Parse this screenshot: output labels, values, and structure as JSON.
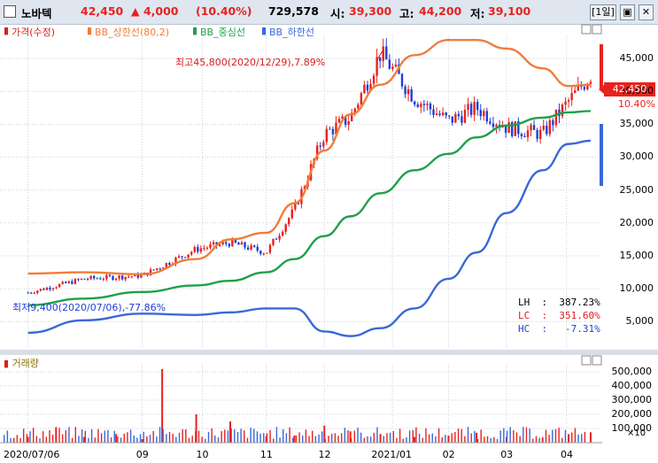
{
  "header": {
    "name": "노바텍",
    "price": "42,450",
    "change": "▲ 4,000",
    "change_pct": "(10.40%)",
    "volume": "729,578",
    "open_label": "시:",
    "open": "39,300",
    "high_label": "고:",
    "high": "44,200",
    "low_label": "저:",
    "low": "39,100",
    "period": "[1일]",
    "colors": {
      "up": "#e8221f",
      "down": "#1f3fd6"
    }
  },
  "legend": {
    "price": "가격(수정)",
    "bb_upper": "BB_상한선(80,2)",
    "bb_mid": "BB_중심선",
    "bb_lower": "BB_하한선",
    "colors": {
      "price": "#d81e1e",
      "bb_upper": "#f07d3a",
      "bb_mid": "#1fa04a",
      "bb_lower": "#3a68d8"
    }
  },
  "annotations": {
    "high_marker": "최고45,800(2020/12/29),7.89%",
    "low_marker": "최저9,400(2020/07/06),-77.86%",
    "lh": "LH  :  387.23%",
    "lc": "LC  :  351.60%",
    "hc": "HC  :   -7.31%",
    "current_price": "42,450",
    "current_pct": "10.40%"
  },
  "volume_panel": {
    "label": "거래량",
    "multiplier": "×10"
  },
  "chart_data": [
    {
      "type": "line",
      "title": "",
      "x_ticks": [
        "2020/07/06",
        "09",
        "10",
        "11",
        "12",
        "2021/01",
        "02",
        "03",
        "04"
      ],
      "y_ticks": [
        "5,000",
        "10,000",
        "15,000",
        "20,000",
        "25,000",
        "30,000",
        "35,000",
        "40,000",
        "45,000"
      ],
      "ylim": [
        1000,
        48500
      ],
      "series": [
        {
          "name": "가격(수정)",
          "x": [
            "2020/07/06",
            "2020/08/03",
            "2020/09/01",
            "2020/09/28",
            "2020/10/15",
            "2020/11/02",
            "2020/11/16",
            "2020/12/01",
            "2020/12/14",
            "2020/12/29",
            "2021/01/15",
            "2021/02/01",
            "2021/02/15",
            "2021/03/02",
            "2021/03/20",
            "2021/04/02",
            "2021/04/13"
          ],
          "values": [
            9400,
            11500,
            12000,
            16000,
            17000,
            15500,
            22000,
            33500,
            36000,
            45800,
            39000,
            35500,
            37500,
            34500,
            33500,
            38500,
            42450
          ]
        },
        {
          "name": "BB_상한선(80,2)",
          "x": [
            "2020/07/06",
            "2020/08/03",
            "2020/09/01",
            "2020/09/28",
            "2020/10/15",
            "2020/11/02",
            "2020/11/16",
            "2020/12/01",
            "2020/12/14",
            "2020/12/29",
            "2021/01/15",
            "2021/02/01",
            "2021/02/15",
            "2021/03/02",
            "2021/03/20",
            "2021/04/02",
            "2021/04/13"
          ],
          "values": [
            12300,
            12500,
            12200,
            14500,
            17500,
            18500,
            23000,
            31000,
            36500,
            41000,
            45500,
            47800,
            47800,
            46500,
            43500,
            40800,
            41000
          ]
        },
        {
          "name": "BB_중심선",
          "x": [
            "2020/07/06",
            "2020/08/03",
            "2020/09/01",
            "2020/09/28",
            "2020/10/15",
            "2020/11/02",
            "2020/11/16",
            "2020/12/01",
            "2020/12/14",
            "2020/12/29",
            "2021/01/15",
            "2021/02/01",
            "2021/02/15",
            "2021/03/02",
            "2021/03/20",
            "2021/04/02",
            "2021/04/13"
          ],
          "values": [
            7500,
            8500,
            9500,
            10500,
            11200,
            12500,
            14500,
            18000,
            21000,
            24500,
            28000,
            30500,
            33000,
            34800,
            36000,
            36800,
            37000
          ]
        },
        {
          "name": "BB_하한선",
          "x": [
            "2020/07/06",
            "2020/08/03",
            "2020/09/01",
            "2020/09/28",
            "2020/10/15",
            "2020/11/02",
            "2020/11/16",
            "2020/12/01",
            "2020/12/14",
            "2020/12/29",
            "2021/01/15",
            "2021/02/01",
            "2021/02/15",
            "2021/03/02",
            "2021/03/20",
            "2021/04/02",
            "2021/04/13"
          ],
          "values": [
            3300,
            5200,
            6200,
            6000,
            6400,
            7000,
            7000,
            3500,
            2800,
            4000,
            7000,
            11500,
            15500,
            21500,
            28000,
            32000,
            32500
          ]
        }
      ]
    },
    {
      "type": "bar",
      "title": "거래량",
      "y_ticks": [
        "100,000",
        "200,000",
        "300,000",
        "400,000",
        "500,000"
      ],
      "ylim": [
        0,
        550000
      ],
      "x": [
        "2020/07/06",
        "2020/07/20",
        "2020/08/03",
        "2020/08/19",
        "2020/09/01",
        "2020/09/11",
        "2020/09/28",
        "2020/10/15",
        "2020/11/02",
        "2020/11/16",
        "2020/12/01",
        "2020/12/14",
        "2020/12/29",
        "2021/01/15",
        "2021/02/01",
        "2021/02/15",
        "2021/03/02",
        "2021/03/20",
        "2021/04/02",
        "2021/04/13"
      ],
      "values": [
        40000,
        110000,
        40000,
        60000,
        25000,
        520000,
        200000,
        150000,
        45000,
        50000,
        120000,
        80000,
        60000,
        40000,
        50000,
        70000,
        40000,
        30000,
        60000,
        72958
      ]
    }
  ]
}
